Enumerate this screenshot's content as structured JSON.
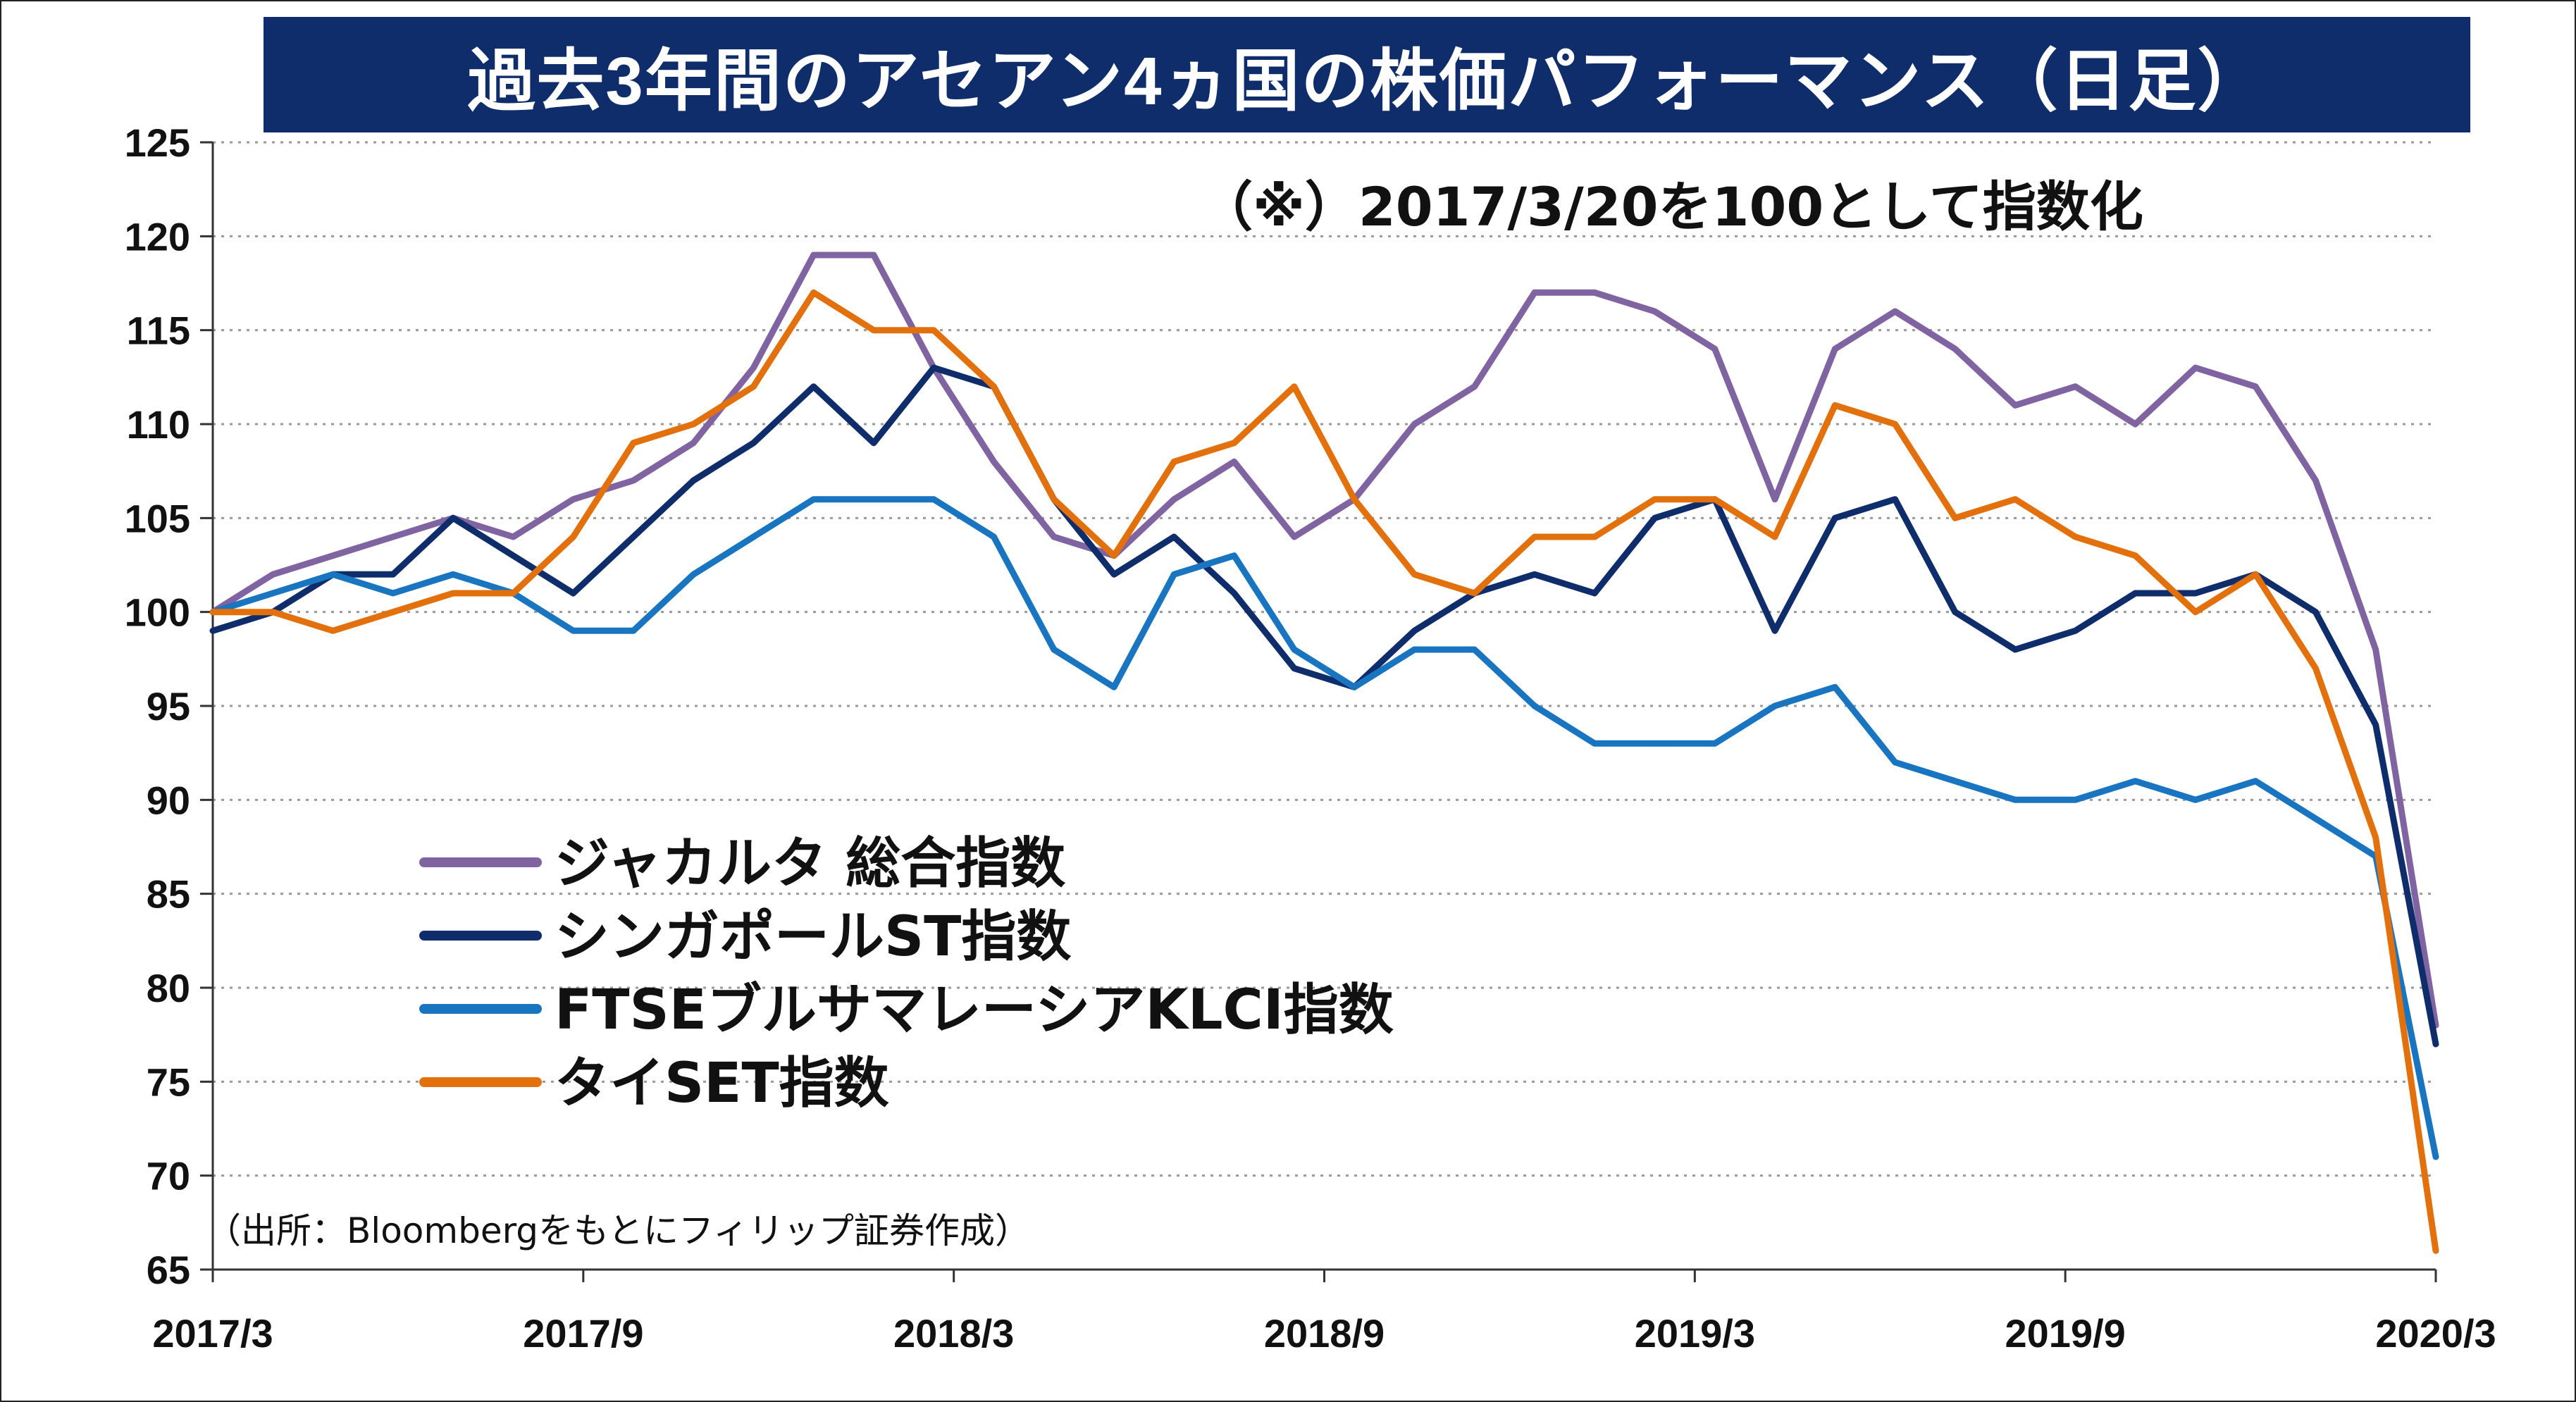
{
  "title": "過去3年間のアセアン4ヵ国の株価パフォーマンス（日足）",
  "note": "（※）2017/3/20を100として指数化",
  "source": "（出所：Bloombergをもとにフィリップ証券作成）",
  "chart_data": {
    "type": "line",
    "title": "過去3年間のアセアン4ヵ国の株価パフォーマンス（日足）",
    "xlabel": "",
    "ylabel": "",
    "ylim": [
      65,
      125
    ],
    "yticks": [
      "125",
      "120",
      "115",
      "110",
      "105",
      "100",
      "95",
      "90",
      "85",
      "80",
      "75",
      "70",
      "65"
    ],
    "xticks": [
      "2017/3",
      "2017/9",
      "2018/3",
      "2018/9",
      "2019/3",
      "2019/9",
      "2020/3"
    ],
    "grid": "horizontal dotted",
    "legend_position": "left-center",
    "x": [
      "2017/3",
      "2017/4",
      "2017/5",
      "2017/6",
      "2017/7",
      "2017/8",
      "2017/9",
      "2017/10",
      "2017/11",
      "2017/12",
      "2018/1",
      "2018/2",
      "2018/3",
      "2018/4",
      "2018/5",
      "2018/6",
      "2018/7",
      "2018/8",
      "2018/9",
      "2018/10",
      "2018/11",
      "2018/12",
      "2019/1",
      "2019/2",
      "2019/3",
      "2019/4",
      "2019/5",
      "2019/6",
      "2019/7",
      "2019/8",
      "2019/9",
      "2019/10",
      "2019/11",
      "2019/12",
      "2020/1",
      "2020/2",
      "2020/3",
      "2020/3 end"
    ],
    "series": [
      {
        "name": "ジャカルタ 総合指数",
        "color": "#8064a2",
        "values": [
          100,
          102,
          103,
          104,
          105,
          104,
          106,
          107,
          109,
          113,
          119,
          119,
          113,
          108,
          104,
          103,
          106,
          108,
          104,
          106,
          110,
          112,
          117,
          117,
          116,
          114,
          106,
          114,
          116,
          114,
          111,
          112,
          110,
          113,
          112,
          107,
          98,
          78
        ]
      },
      {
        "name": "シンガポールST指数",
        "color": "#0f2d6b",
        "values": [
          99,
          100,
          102,
          102,
          105,
          103,
          101,
          104,
          107,
          109,
          112,
          109,
          113,
          112,
          106,
          102,
          104,
          101,
          97,
          96,
          99,
          101,
          102,
          101,
          105,
          106,
          99,
          105,
          106,
          100,
          98,
          99,
          101,
          101,
          102,
          100,
          94,
          77
        ]
      },
      {
        "name": "FTSEブルサマレーシアKLCI指数",
        "color": "#1a75c0",
        "values": [
          100,
          101,
          102,
          101,
          102,
          101,
          99,
          99,
          102,
          104,
          106,
          106,
          106,
          104,
          98,
          96,
          102,
          103,
          98,
          96,
          98,
          98,
          95,
          93,
          93,
          93,
          95,
          96,
          92,
          91,
          90,
          90,
          91,
          90,
          91,
          89,
          87,
          71
        ]
      },
      {
        "name": "タイSET指数",
        "color": "#e2700c",
        "values": [
          100,
          100,
          99,
          100,
          101,
          101,
          104,
          109,
          110,
          112,
          117,
          115,
          115,
          112,
          106,
          103,
          108,
          109,
          112,
          106,
          102,
          101,
          104,
          104,
          106,
          106,
          104,
          111,
          110,
          105,
          106,
          104,
          103,
          100,
          102,
          97,
          88,
          66
        ]
      }
    ]
  }
}
